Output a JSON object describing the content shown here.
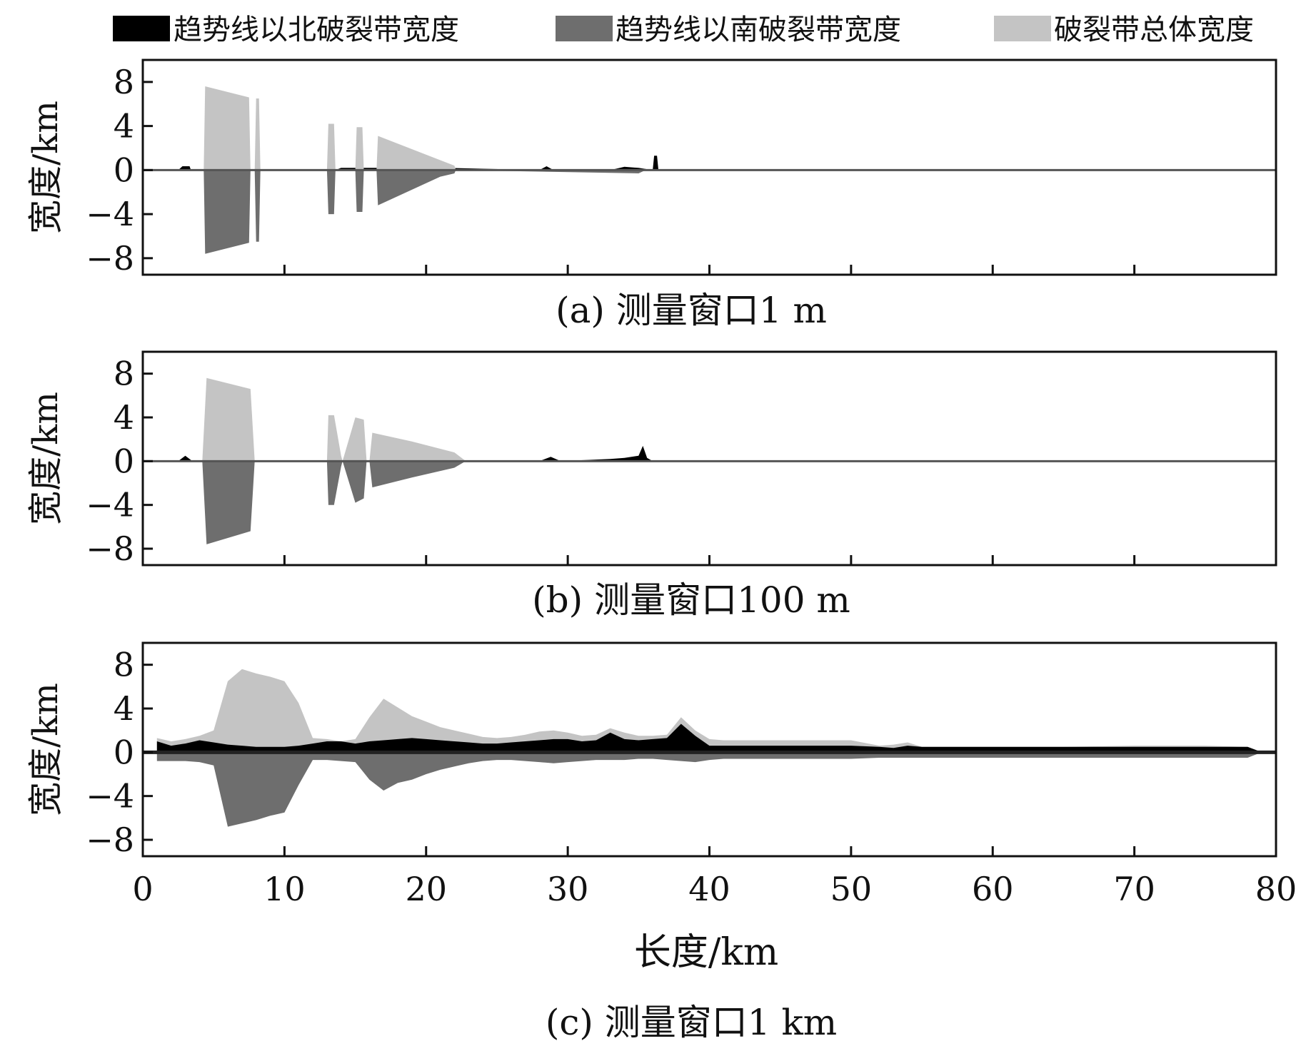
{
  "legend": [
    {
      "label": "趋势线以北破裂带宽度",
      "color": "#000000"
    },
    {
      "label": "趋势线以南破裂带宽度",
      "color": "#6e6e6e"
    },
    {
      "label": "破裂带总体宽度",
      "color": "#c4c4c4"
    }
  ],
  "xlabel": "长度/km",
  "chart_data": [
    {
      "type": "area",
      "panel": "a",
      "caption": "(a) 测量窗口1 m",
      "ylabel": "宽度/km",
      "xlim": [
        0,
        80
      ],
      "ylim": [
        -9.5,
        10
      ],
      "yticks": [
        8,
        4,
        0,
        -4,
        -8
      ],
      "ytick_labels": [
        "8",
        "4",
        "0",
        "−4",
        "−8"
      ],
      "xticks": [
        0,
        10,
        20,
        30,
        40,
        50,
        60,
        70,
        80
      ],
      "xtick_labels_shown": false,
      "series": [
        {
          "name": "趋势线以北破裂带宽度",
          "x": [
            2.5,
            2.8,
            3.3,
            3.4,
            13.6,
            14.0,
            17.0,
            18.0,
            28.0,
            28.5,
            29.0,
            33.0,
            34.0,
            35.0,
            36.0,
            36.1,
            36.3,
            36.4
          ],
          "y": [
            0,
            0.35,
            0.35,
            0,
            0,
            0.2,
            0.2,
            0.3,
            0,
            0.35,
            0,
            0,
            0.3,
            0.2,
            0,
            1.3,
            1.3,
            0
          ]
        },
        {
          "name": "趋势线以南破裂带宽度",
          "x": [
            4.3,
            4.4,
            7.5,
            7.6,
            7.9,
            8.0,
            8.2,
            8.3,
            13.0,
            13.1,
            13.5,
            13.6,
            15.0,
            15.1,
            15.5,
            15.6,
            16.5,
            16.6,
            21.0,
            22.0,
            22.1,
            35.0,
            35.5
          ],
          "y": [
            0,
            -7.6,
            -6.6,
            0,
            0,
            -6.5,
            -6.5,
            0,
            0,
            -4.0,
            -4.0,
            0,
            0,
            -3.8,
            -3.8,
            0,
            0,
            -3.2,
            -0.6,
            -0.3,
            0,
            -0.3,
            0
          ]
        },
        {
          "name": "破裂带总体宽度",
          "x": [
            4.3,
            4.4,
            7.5,
            7.6,
            7.9,
            8.0,
            8.2,
            8.3,
            13.0,
            13.1,
            13.5,
            13.6,
            15.0,
            15.1,
            15.5,
            15.6,
            16.5,
            16.6,
            21.0,
            22.0,
            22.1
          ],
          "y": [
            0,
            7.6,
            6.6,
            0,
            0,
            6.5,
            6.5,
            0,
            0,
            4.2,
            4.2,
            0,
            0,
            3.9,
            3.9,
            0,
            0,
            3.1,
            0.9,
            0.4,
            0
          ]
        }
      ]
    },
    {
      "type": "area",
      "panel": "b",
      "caption": "(b) 测量窗口100 m",
      "ylabel": "宽度/km",
      "xlim": [
        0,
        80
      ],
      "ylim": [
        -9.5,
        10
      ],
      "yticks": [
        8,
        4,
        0,
        -4,
        -8
      ],
      "ytick_labels": [
        "8",
        "4",
        "0",
        "−4",
        "−8"
      ],
      "xticks": [
        0,
        10,
        20,
        30,
        40,
        50,
        60,
        70,
        80
      ],
      "xtick_labels_shown": false,
      "series": [
        {
          "name": "趋势线以北破裂带宽度",
          "x": [
            2.5,
            3.0,
            3.5,
            17.0,
            18.0,
            19.0,
            28.0,
            28.8,
            29.5,
            33.0,
            34.0,
            35.0,
            35.3,
            35.6,
            36.0
          ],
          "y": [
            0,
            0.5,
            0,
            0,
            0.3,
            0,
            0,
            0.4,
            0,
            0.2,
            0.3,
            0.5,
            1.4,
            0.3,
            0
          ]
        },
        {
          "name": "趋势线以南破裂带宽度",
          "x": [
            4.2,
            4.5,
            7.6,
            7.9,
            13.0,
            13.1,
            13.5,
            14.0,
            14.1,
            15.0,
            15.6,
            15.8,
            16.0,
            16.2,
            19.0,
            22.0,
            22.8
          ],
          "y": [
            0,
            -7.6,
            -6.4,
            0,
            0,
            -4.0,
            -4.0,
            -0.5,
            0,
            -3.8,
            -3.4,
            0,
            0,
            -2.4,
            -1.5,
            -0.6,
            0
          ]
        },
        {
          "name": "破裂带总体宽度",
          "x": [
            4.2,
            4.5,
            7.6,
            7.9,
            13.0,
            13.1,
            13.5,
            14.0,
            14.1,
            15.0,
            15.6,
            15.8,
            16.0,
            16.2,
            19.0,
            22.0,
            22.8
          ],
          "y": [
            0,
            7.6,
            6.6,
            0,
            0,
            4.2,
            4.2,
            0.5,
            0,
            4.0,
            3.8,
            0,
            0,
            2.6,
            1.8,
            0.8,
            0
          ]
        }
      ]
    },
    {
      "type": "area",
      "panel": "c",
      "caption": "(c) 测量窗口1 km",
      "ylabel": "宽度/km",
      "xlabel": "长度/km",
      "xlim": [
        0,
        80
      ],
      "ylim": [
        -9.5,
        10
      ],
      "yticks": [
        8,
        4,
        0,
        -4,
        -8
      ],
      "ytick_labels": [
        "8",
        "4",
        "0",
        "−4",
        "−8"
      ],
      "xticks": [
        0,
        10,
        20,
        30,
        40,
        50,
        60,
        70,
        80
      ],
      "xtick_labels": [
        "0",
        "10",
        "20",
        "30",
        "40",
        "50",
        "60",
        "70",
        "80"
      ],
      "series": [
        {
          "name": "破裂带总体宽度",
          "x": [
            1,
            2,
            3,
            4,
            5,
            6,
            7,
            8,
            9,
            10,
            11,
            12,
            13,
            14,
            15,
            16,
            17,
            18,
            19,
            20,
            21,
            22,
            23,
            24,
            25,
            26,
            27,
            28,
            29,
            30,
            31,
            32,
            33,
            34,
            35,
            36,
            37,
            38,
            39,
            40,
            41,
            45,
            50,
            52,
            53,
            54,
            55,
            60,
            65,
            70,
            75,
            78,
            79
          ],
          "y": [
            1.3,
            1.0,
            1.2,
            1.5,
            2.0,
            6.5,
            7.6,
            7.2,
            6.9,
            6.5,
            4.5,
            1.3,
            1.2,
            1.0,
            1.2,
            3.2,
            4.9,
            4.1,
            3.3,
            2.8,
            2.3,
            2.0,
            1.7,
            1.4,
            1.3,
            1.4,
            1.6,
            1.9,
            2.0,
            1.8,
            1.5,
            1.6,
            2.2,
            1.8,
            1.5,
            1.5,
            1.6,
            3.2,
            2.0,
            1.2,
            1.1,
            1.1,
            1.1,
            0.6,
            0.7,
            0.9,
            0.5,
            0.5,
            0.5,
            0.6,
            0.6,
            0.5,
            0
          ]
        },
        {
          "name": "趋势线以北破裂带宽度",
          "x": [
            1,
            2,
            3,
            4,
            5,
            6,
            7,
            8,
            9,
            10,
            11,
            12,
            13,
            14,
            15,
            16,
            17,
            18,
            19,
            20,
            21,
            22,
            23,
            24,
            25,
            26,
            27,
            28,
            29,
            30,
            31,
            32,
            33,
            34,
            35,
            36,
            37,
            38,
            39,
            40,
            41,
            45,
            50,
            52,
            53,
            54,
            55,
            60,
            65,
            70,
            75,
            78,
            79
          ],
          "y": [
            1.0,
            0.6,
            0.8,
            1.1,
            0.9,
            0.7,
            0.6,
            0.5,
            0.5,
            0.5,
            0.6,
            0.8,
            1.0,
            1.0,
            0.8,
            1.0,
            1.1,
            1.2,
            1.3,
            1.2,
            1.1,
            1.0,
            0.9,
            0.8,
            0.8,
            0.9,
            1.0,
            1.1,
            1.2,
            1.2,
            1.0,
            1.1,
            1.8,
            1.2,
            1.1,
            1.2,
            1.3,
            2.6,
            1.5,
            0.6,
            0.6,
            0.6,
            0.6,
            0.5,
            0.4,
            0.6,
            0.5,
            0.5,
            0.5,
            0.5,
            0.5,
            0.5,
            0
          ]
        },
        {
          "name": "趋势线以南破裂带宽度",
          "x": [
            1,
            2,
            3,
            4,
            5,
            6,
            7,
            8,
            9,
            10,
            11,
            12,
            13,
            14,
            15,
            16,
            17,
            18,
            19,
            20,
            21,
            22,
            23,
            24,
            25,
            26,
            27,
            28,
            29,
            30,
            31,
            32,
            33,
            34,
            35,
            36,
            37,
            38,
            39,
            40,
            41,
            45,
            50,
            52,
            53,
            54,
            55,
            60,
            65,
            70,
            75,
            78,
            79
          ],
          "y": [
            -0.8,
            -0.8,
            -0.8,
            -0.9,
            -1.2,
            -6.8,
            -6.5,
            -6.2,
            -5.8,
            -5.5,
            -3.0,
            -0.7,
            -0.7,
            -0.8,
            -0.9,
            -2.5,
            -3.5,
            -2.8,
            -2.5,
            -2.0,
            -1.6,
            -1.3,
            -1.0,
            -0.8,
            -0.7,
            -0.7,
            -0.8,
            -0.9,
            -1.0,
            -0.9,
            -0.8,
            -0.7,
            -0.7,
            -0.7,
            -0.6,
            -0.6,
            -0.7,
            -0.8,
            -0.9,
            -0.7,
            -0.6,
            -0.6,
            -0.6,
            -0.5,
            -0.5,
            -0.5,
            -0.5,
            -0.5,
            -0.5,
            -0.5,
            -0.5,
            -0.5,
            0
          ]
        }
      ]
    }
  ]
}
